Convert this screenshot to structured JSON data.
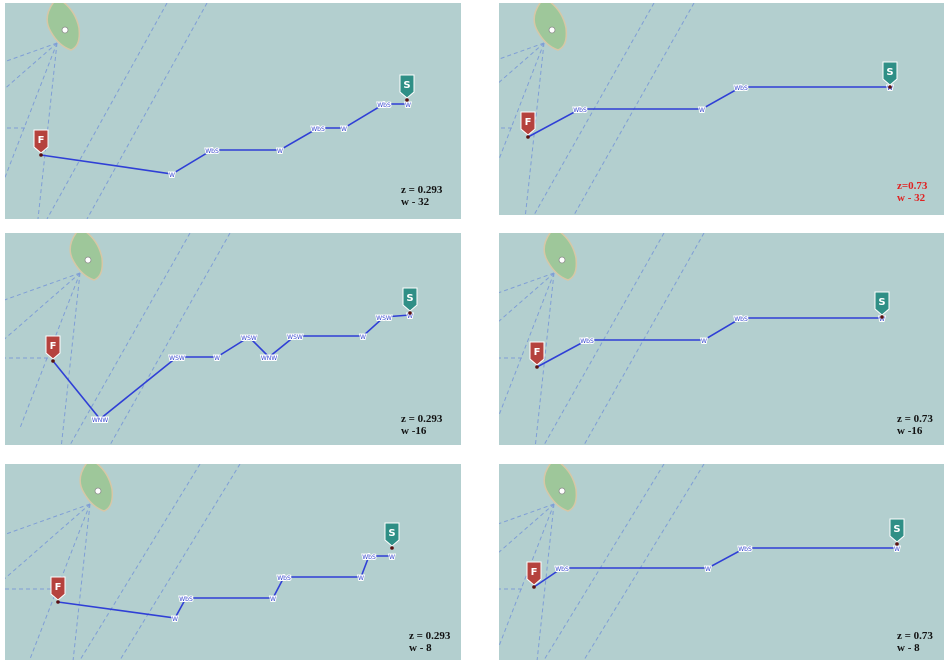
{
  "colors": {
    "sea": "#b3cfcf",
    "land": "#9ec79a",
    "land_edge": "#d7c7a6",
    "shipping_lane": "#7f9ed6",
    "route": "#2f3fd6",
    "finish_marker": "#b5423d",
    "start_marker": "#2f8f86",
    "caption_default": "#111111",
    "caption_highlight": "#e02222"
  },
  "panels": [
    {
      "markers": {
        "finish": "F",
        "start": "S"
      },
      "waypoints": [
        "",
        "W",
        "WbS",
        "W",
        "WbS",
        "W",
        "WbS",
        "W"
      ],
      "caption": {
        "z_text": "z = 0.293",
        "w_text": "w - 32",
        "highlight": false
      }
    },
    {
      "markers": {
        "finish": "F",
        "start": "S"
      },
      "waypoints": [
        "",
        "WbS",
        "W",
        "WbS",
        "W"
      ],
      "caption": {
        "z_text": "z=0.73",
        "w_text": "w - 32",
        "highlight": true
      }
    },
    {
      "markers": {
        "finish": "F",
        "start": "S"
      },
      "waypoints": [
        "",
        "WNW",
        "WSW",
        "W",
        "WSW",
        "WNW",
        "WSW",
        "W",
        "WSW",
        "W"
      ],
      "caption": {
        "z_text": "z = 0.293",
        "w_text": "w -16",
        "highlight": false
      }
    },
    {
      "markers": {
        "finish": "F",
        "start": "S"
      },
      "waypoints": [
        "",
        "WbS",
        "W",
        "WbS",
        "W"
      ],
      "caption": {
        "z_text": "z = 0.73",
        "w_text": "w -16",
        "highlight": false
      }
    },
    {
      "markers": {
        "finish": "F",
        "start": "S"
      },
      "waypoints": [
        "",
        "W",
        "WbS",
        "W",
        "WbS",
        "W",
        "WbS",
        "W"
      ],
      "caption": {
        "z_text": "z = 0.293",
        "w_text": "w - 8",
        "highlight": false
      }
    },
    {
      "markers": {
        "finish": "F",
        "start": "S"
      },
      "waypoints": [
        "",
        "WbS",
        "W",
        "WbS",
        "W"
      ],
      "caption": {
        "z_text": "z = 0.73",
        "w_text": "w - 8",
        "highlight": false
      }
    }
  ]
}
